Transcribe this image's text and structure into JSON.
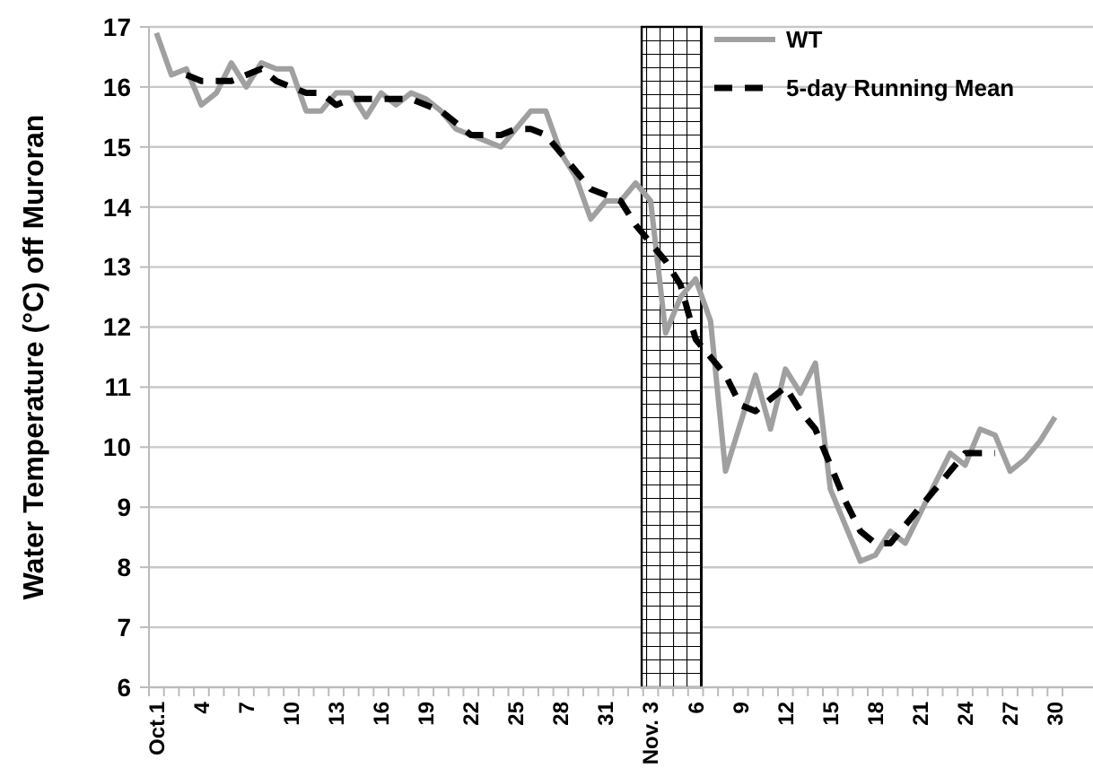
{
  "chart_data": {
    "type": "line",
    "ylabel": "Water  Temperature (°C) off Muroran",
    "categories": [
      "Oct.1",
      null,
      null,
      "4",
      null,
      null,
      "7",
      null,
      null,
      "10",
      null,
      null,
      "13",
      null,
      null,
      "16",
      null,
      null,
      "19",
      null,
      null,
      "22",
      null,
      null,
      "25",
      null,
      null,
      "28",
      null,
      null,
      "31",
      null,
      null,
      "Nov. 3",
      null,
      null,
      "6",
      null,
      null,
      "9",
      null,
      null,
      "12",
      null,
      null,
      "15",
      null,
      null,
      "18",
      null,
      null,
      "21",
      null,
      null,
      "24",
      null,
      null,
      "27",
      null,
      null,
      "30"
    ],
    "series": [
      {
        "name": "WT",
        "color": "#a0a0a0",
        "line_style": "solid",
        "values": [
          16.9,
          16.2,
          16.3,
          15.7,
          15.9,
          16.4,
          16.0,
          16.4,
          16.3,
          16.3,
          15.6,
          15.6,
          15.9,
          15.9,
          15.5,
          15.9,
          15.7,
          15.9,
          15.8,
          15.6,
          15.3,
          15.2,
          15.1,
          15.0,
          15.3,
          15.6,
          15.6,
          14.9,
          14.5,
          13.8,
          14.1,
          14.1,
          14.4,
          14.1,
          11.9,
          12.5,
          12.8,
          12.1,
          9.6,
          10.4,
          11.2,
          10.3,
          11.3,
          10.9,
          11.4,
          9.3,
          8.7,
          8.1,
          8.2,
          8.6,
          8.4,
          8.9,
          9.4,
          9.9,
          9.7,
          10.3,
          10.2,
          9.6,
          9.8,
          10.1,
          10.5
        ]
      },
      {
        "name": "5-day Running Mean",
        "color": "#000000",
        "line_style": "dashed",
        "values": [
          null,
          null,
          16.2,
          16.1,
          16.1,
          16.1,
          16.2,
          16.3,
          16.1,
          16.0,
          15.9,
          15.9,
          15.7,
          15.8,
          15.8,
          15.8,
          15.8,
          15.8,
          15.7,
          15.6,
          15.4,
          15.2,
          15.2,
          15.2,
          15.3,
          15.3,
          15.2,
          14.9,
          14.6,
          14.3,
          14.2,
          14.1,
          13.7,
          13.4,
          13.1,
          12.7,
          11.8,
          11.5,
          11.2,
          10.7,
          10.6,
          10.8,
          11.0,
          10.6,
          10.3,
          9.7,
          9.1,
          8.6,
          8.4,
          8.4,
          8.7,
          9.0,
          9.3,
          9.6,
          9.9,
          9.9,
          9.9,
          null,
          null,
          null,
          null
        ]
      }
    ],
    "bands": [
      {
        "axis": "x",
        "from": "Nov. 3",
        "to": "6",
        "color": "#000000"
      }
    ],
    "ylim": [
      6,
      17
    ],
    "yticks": [
      6,
      7,
      8,
      9,
      10,
      11,
      12,
      13,
      14,
      15,
      16,
      17
    ],
    "grid": "y",
    "legend": "top right",
    "marker": "none"
  }
}
